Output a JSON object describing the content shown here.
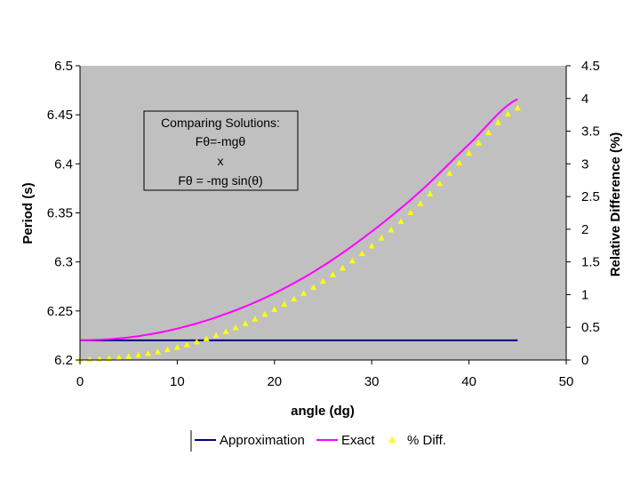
{
  "chart_data": {
    "type": "line",
    "xlabel": "angle (dg)",
    "ylabel": "Period (s)",
    "y2label": "Relative Difference (%)",
    "xlim": [
      0,
      50
    ],
    "ylim": [
      6.2,
      6.5
    ],
    "y2lim": [
      0,
      4.5
    ],
    "xticks": [
      "0",
      "10",
      "20",
      "30",
      "40",
      "50"
    ],
    "yticks": [
      "6.2",
      "6.25",
      "6.3",
      "6.35",
      "6.4",
      "6.45",
      "6.5"
    ],
    "y2ticks": [
      "0",
      "0.5",
      "1",
      "1.5",
      "2",
      "2.5",
      "3",
      "3.5",
      "4",
      "4.5"
    ],
    "grid": false,
    "plot_background": "#c0c0c0",
    "legend_position": "bottom",
    "annotation": [
      "Comparing  Solutions:",
      "Fθ=-mgθ",
      "x",
      "Fθ = -mg sin(θ)"
    ],
    "x": [
      0,
      5,
      10,
      15,
      20,
      25,
      30,
      35,
      40,
      45
    ],
    "series": [
      {
        "name": "Approximation",
        "axis": "left",
        "color": "#000080",
        "marker": "none",
        "values": [
          6.22,
          6.22,
          6.22,
          6.22,
          6.22,
          6.22,
          6.22,
          6.22,
          6.22,
          6.22
        ]
      },
      {
        "name": "Exact",
        "axis": "left",
        "color": "#ff00ff",
        "marker": "none",
        "values": [
          6.22,
          6.223,
          6.232,
          6.247,
          6.268,
          6.296,
          6.331,
          6.372,
          6.42,
          6.466
        ]
      },
      {
        "name": "% Diff.",
        "axis": "right",
        "color": "#ffff00",
        "marker": "triangle",
        "values": [
          0,
          0.05,
          0.19,
          0.43,
          0.77,
          1.2,
          1.74,
          2.39,
          3.16,
          3.85
        ]
      }
    ]
  }
}
